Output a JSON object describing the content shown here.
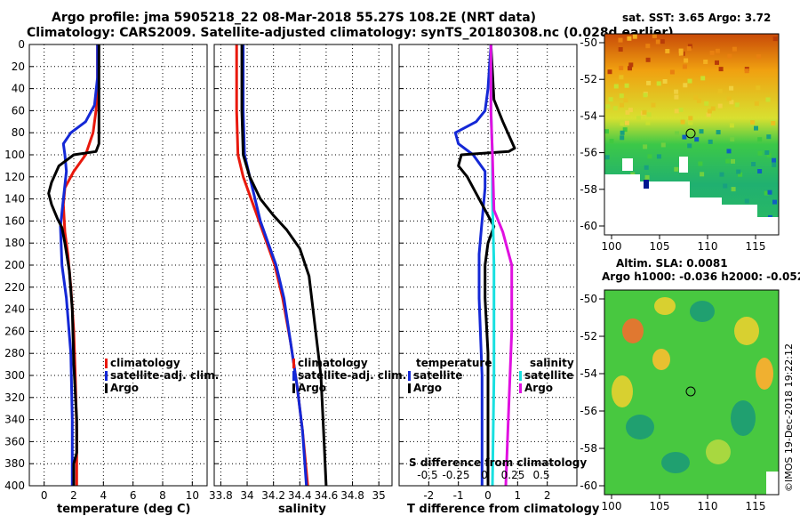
{
  "header": {
    "line1": "Argo profile: jma 5905218_22 08-Mar-2018 55.27S 108.2E (NRT data)",
    "line2": "Climatology: CARS2009. Satellite-adjusted climatology: synTS_20180308.nc (0.028d earlier)"
  },
  "colors": {
    "climatology": "#e8180c",
    "satellite": "#1428d6",
    "argo": "#000000",
    "sal_satellite": "#18e0e0",
    "sal_argo": "#e010e0"
  },
  "chart_data": [
    {
      "type": "line",
      "id": "temperature",
      "xlabel": "temperature (deg C)",
      "ylabel": "",
      "xlim": [
        -1,
        11
      ],
      "ylim": [
        400,
        0
      ],
      "xticks": [
        0,
        2,
        4,
        6,
        8,
        10
      ],
      "yticks": [
        0,
        20,
        40,
        60,
        80,
        100,
        120,
        140,
        160,
        180,
        200,
        220,
        240,
        260,
        280,
        300,
        320,
        340,
        360,
        380,
        400
      ],
      "legend": [
        "climatology",
        "satellite-adj. clim.",
        "Argo"
      ],
      "series": [
        {
          "name": "climatology",
          "color": "#e8180c",
          "points": [
            [
              3.6,
              0
            ],
            [
              3.6,
              40
            ],
            [
              3.5,
              60
            ],
            [
              3.3,
              80
            ],
            [
              2.8,
              100
            ],
            [
              2.0,
              115
            ],
            [
              1.4,
              130
            ],
            [
              1.3,
              145
            ],
            [
              1.4,
              170
            ],
            [
              1.6,
              190
            ],
            [
              1.8,
              220
            ],
            [
              2.0,
              260
            ],
            [
              2.1,
              300
            ],
            [
              2.2,
              350
            ],
            [
              2.2,
              400
            ]
          ]
        },
        {
          "name": "satellite-adj. clim.",
          "color": "#1428d6",
          "points": [
            [
              3.6,
              0
            ],
            [
              3.6,
              30
            ],
            [
              3.4,
              55
            ],
            [
              2.8,
              70
            ],
            [
              1.8,
              80
            ],
            [
              1.3,
              90
            ],
            [
              1.4,
              100
            ],
            [
              1.5,
              115
            ],
            [
              1.3,
              140
            ],
            [
              1.1,
              165
            ],
            [
              1.2,
              200
            ],
            [
              1.5,
              230
            ],
            [
              1.8,
              280
            ],
            [
              1.9,
              340
            ],
            [
              1.9,
              400
            ]
          ]
        },
        {
          "name": "Argo",
          "color": "#000000",
          "points": [
            [
              3.7,
              0
            ],
            [
              3.7,
              60
            ],
            [
              3.7,
              90
            ],
            [
              3.5,
              97
            ],
            [
              2.0,
              100
            ],
            [
              1.0,
              110
            ],
            [
              0.5,
              125
            ],
            [
              0.3,
              135
            ],
            [
              0.5,
              145
            ],
            [
              0.9,
              158
            ],
            [
              1.2,
              166
            ],
            [
              1.4,
              180
            ],
            [
              1.7,
              205
            ],
            [
              1.9,
              240
            ],
            [
              2.0,
              290
            ],
            [
              2.2,
              340
            ],
            [
              2.2,
              370
            ],
            [
              2.0,
              380
            ],
            [
              2.0,
              400
            ]
          ]
        }
      ]
    },
    {
      "type": "line",
      "id": "salinity",
      "xlabel": "salinity",
      "ylabel": "",
      "xlim": [
        33.75,
        35.1
      ],
      "ylim": [
        400,
        0
      ],
      "xticks": [
        33.8,
        34,
        34.2,
        34.4,
        34.6,
        34.8,
        35
      ],
      "xtick_labels": [
        "33.8",
        "34",
        "34.2",
        "34.4",
        "34.6",
        "34.8",
        "35"
      ],
      "legend": [
        "climatology",
        "satellite-adj. clim.",
        "Argo"
      ],
      "series": [
        {
          "name": "climatology",
          "color": "#e8180c",
          "points": [
            [
              33.92,
              0
            ],
            [
              33.92,
              60
            ],
            [
              33.93,
              100
            ],
            [
              33.97,
              120
            ],
            [
              34.03,
              140
            ],
            [
              34.09,
              160
            ],
            [
              34.15,
              180
            ],
            [
              34.21,
              200
            ],
            [
              34.27,
              230
            ],
            [
              34.33,
              270
            ],
            [
              34.38,
              310
            ],
            [
              34.42,
              350
            ],
            [
              34.46,
              400
            ]
          ]
        },
        {
          "name": "satellite-adj. clim.",
          "color": "#1428d6",
          "points": [
            [
              33.97,
              0
            ],
            [
              33.97,
              60
            ],
            [
              33.98,
              100
            ],
            [
              34.02,
              120
            ],
            [
              34.06,
              140
            ],
            [
              34.1,
              160
            ],
            [
              34.16,
              180
            ],
            [
              34.22,
              200
            ],
            [
              34.28,
              230
            ],
            [
              34.33,
              270
            ],
            [
              34.38,
              310
            ],
            [
              34.42,
              350
            ],
            [
              34.45,
              400
            ]
          ]
        },
        {
          "name": "Argo",
          "color": "#000000",
          "points": [
            [
              33.96,
              0
            ],
            [
              33.96,
              60
            ],
            [
              33.97,
              100
            ],
            [
              34.02,
              120
            ],
            [
              34.1,
              140
            ],
            [
              34.2,
              155
            ],
            [
              34.3,
              168
            ],
            [
              34.4,
              185
            ],
            [
              34.47,
              210
            ],
            [
              34.51,
              250
            ],
            [
              34.56,
              300
            ],
            [
              34.58,
              350
            ],
            [
              34.6,
              400
            ]
          ]
        }
      ]
    },
    {
      "type": "line",
      "id": "difference",
      "xlabel": "T difference from climatology",
      "top_axis_label": "S difference from climatology",
      "xlim": [
        -3,
        3
      ],
      "ylim": [
        400,
        0
      ],
      "xticks": [
        -2,
        -1,
        0,
        1,
        2
      ],
      "top_ticks": [
        "-0.5",
        "-0.25",
        "0",
        "0.25",
        "0.5"
      ],
      "legend_temperature": {
        "title": "temperature",
        "entries": [
          "satellite",
          "Argo"
        ]
      },
      "legend_salinity": {
        "title": "salinity",
        "entries": [
          "satellite",
          "Argo"
        ]
      },
      "series": [
        {
          "name": "temperature satellite",
          "color": "#1428d6",
          "points": [
            [
              0.1,
              0
            ],
            [
              0.0,
              40
            ],
            [
              -0.1,
              60
            ],
            [
              -0.4,
              70
            ],
            [
              -1.1,
              80
            ],
            [
              -1.0,
              90
            ],
            [
              -0.5,
              100
            ],
            [
              -0.1,
              115
            ],
            [
              -0.1,
              130
            ],
            [
              -0.2,
              160
            ],
            [
              -0.3,
              190
            ],
            [
              -0.3,
              230
            ],
            [
              -0.2,
              300
            ],
            [
              -0.2,
              400
            ]
          ]
        },
        {
          "name": "temperature Argo",
          "color": "#000000",
          "points": [
            [
              0.1,
              0
            ],
            [
              0.2,
              50
            ],
            [
              0.5,
              70
            ],
            [
              0.9,
              94
            ],
            [
              0.7,
              97
            ],
            [
              -0.9,
              100
            ],
            [
              -1.0,
              110
            ],
            [
              -0.7,
              120
            ],
            [
              -0.4,
              135
            ],
            [
              -0.1,
              150
            ],
            [
              0.2,
              165
            ],
            [
              0.0,
              180
            ],
            [
              -0.1,
              200
            ],
            [
              -0.1,
              230
            ],
            [
              0.0,
              280
            ],
            [
              0.0,
              320
            ],
            [
              0.0,
              400
            ]
          ]
        }
      ]
    }
  ],
  "maps": {
    "sst": {
      "title": "sat. SST: 3.65 Argo: 3.72",
      "yticks": [
        "-50",
        "-52",
        "-54",
        "-56",
        "-58",
        "-60"
      ],
      "xticks": [
        "100",
        "105",
        "110",
        "115"
      ]
    },
    "sla": {
      "title_line1": "Altim. SLA: 0.0081",
      "title_line2": "Argo h1000: -0.036 h2000: -0.052",
      "yticks": [
        "-50",
        "-52",
        "-54",
        "-56",
        "-58",
        "-60"
      ],
      "xticks": [
        "100",
        "105",
        "110",
        "115"
      ]
    },
    "credit": "©IMOS 19-Dec-2018 19:22:12"
  }
}
